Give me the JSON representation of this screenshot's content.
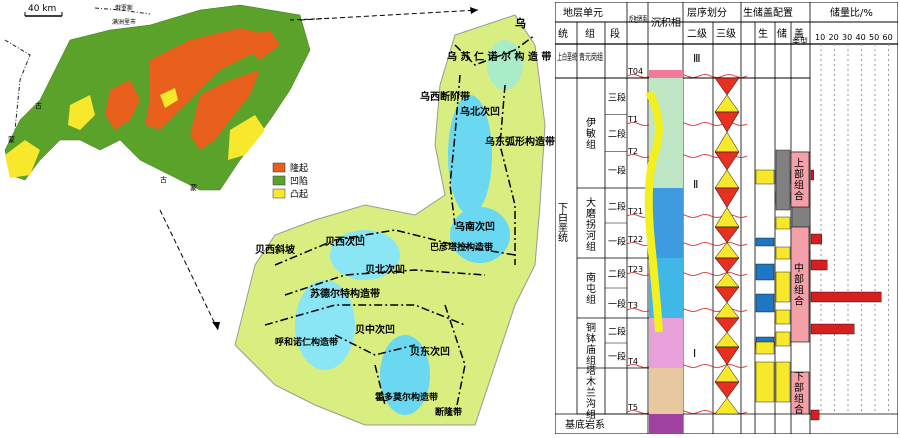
{
  "overview_map": {
    "scale_label": "40 km",
    "place_labels": [
      "俄罗斯",
      "满洲里市",
      "蒙",
      "古",
      "蒙",
      "古"
    ],
    "legend": [
      {
        "label": "隆起",
        "color": "#e8601c"
      },
      {
        "label": "凹陷",
        "color": "#5aa22a"
      },
      {
        "label": "凸起",
        "color": "#f7e82c"
      }
    ]
  },
  "zone_map": {
    "zones": [
      {
        "name": "乌\n诺\n尔\n构\n造\n带",
        "text": "乌 苏 仁 诺 尔 构 造 带"
      },
      {
        "name": "乌西断阶带",
        "text": "乌西断阶带"
      },
      {
        "name": "乌北次凹",
        "text": "乌北次凹"
      },
      {
        "name": "乌东弧形构造带",
        "text": "乌东弧形构造带"
      },
      {
        "name": "乌南次凹",
        "text": "乌南次凹"
      },
      {
        "name": "巴彦塔拉构造带",
        "text": "巴彦塔拉构造带"
      },
      {
        "name": "贝西斜坡",
        "text": "贝西斜坡"
      },
      {
        "name": "贝西次凹",
        "text": "贝西次凹"
      },
      {
        "name": "贝北次凹",
        "text": "贝北次凹"
      },
      {
        "name": "苏德尔特构造带",
        "text": "苏德尔特构造带"
      },
      {
        "name": "贝中次凹",
        "text": "贝中次凹"
      },
      {
        "name": "呼和诺仁构造带",
        "text": "呼和诺仁构造带"
      },
      {
        "name": "贝东次凹",
        "text": "贝东次凹"
      },
      {
        "name": "霍多莫尔构造带",
        "text": "霍多莫尔构造带"
      },
      {
        "name": "断隆带",
        "text": "断隆带"
      }
    ]
  },
  "strat_table": {
    "header": {
      "unit": "地层单元",
      "system": "统",
      "formation": "组",
      "member": "段",
      "reflector": "反射界面",
      "facies": "沉积相",
      "sequence": "层序划分",
      "seq2": "二级",
      "seq3": "三级",
      "assemblage": "生储盖配置",
      "source": "生",
      "reservoir": "储",
      "seal": "盖",
      "type": "类型",
      "reserve_ratio": "储量比/%",
      "ticks": [
        "10",
        "20",
        "30",
        "40",
        "50",
        "60"
      ]
    },
    "upper_system": "上白垩统",
    "upper_formation": "青元岗组",
    "lower_system": "下白垩统",
    "basement": "基底岩系",
    "formations": [
      {
        "name": "伊敏组",
        "members": [
          "三段",
          "二段",
          "一段"
        ]
      },
      {
        "name": "大磨拐河组",
        "members": [
          "二段",
          "一段"
        ]
      },
      {
        "name": "南屯组",
        "members": [
          "二段",
          "一段"
        ]
      },
      {
        "name": "铜钵庙组",
        "members": [
          "二段",
          "一段"
        ]
      },
      {
        "name": "塔木兰沟组",
        "members": []
      }
    ],
    "reflectors": [
      "T04",
      "T1",
      "T2",
      "T21",
      "T22",
      "T23",
      "T3",
      "T4",
      "T5"
    ],
    "seq2": [
      "Ⅲ",
      "Ⅱ",
      "Ⅰ"
    ],
    "combos": [
      "上部组合",
      "中部组合",
      "下部组合"
    ],
    "reserve_values": [
      2,
      8,
      12,
      52,
      32,
      6
    ],
    "colors": {
      "source": "#1f77c4",
      "reservoir": "#f7e82c",
      "seal": "#808080",
      "combo": "#f4a0a8",
      "bar": "#d62020"
    }
  }
}
